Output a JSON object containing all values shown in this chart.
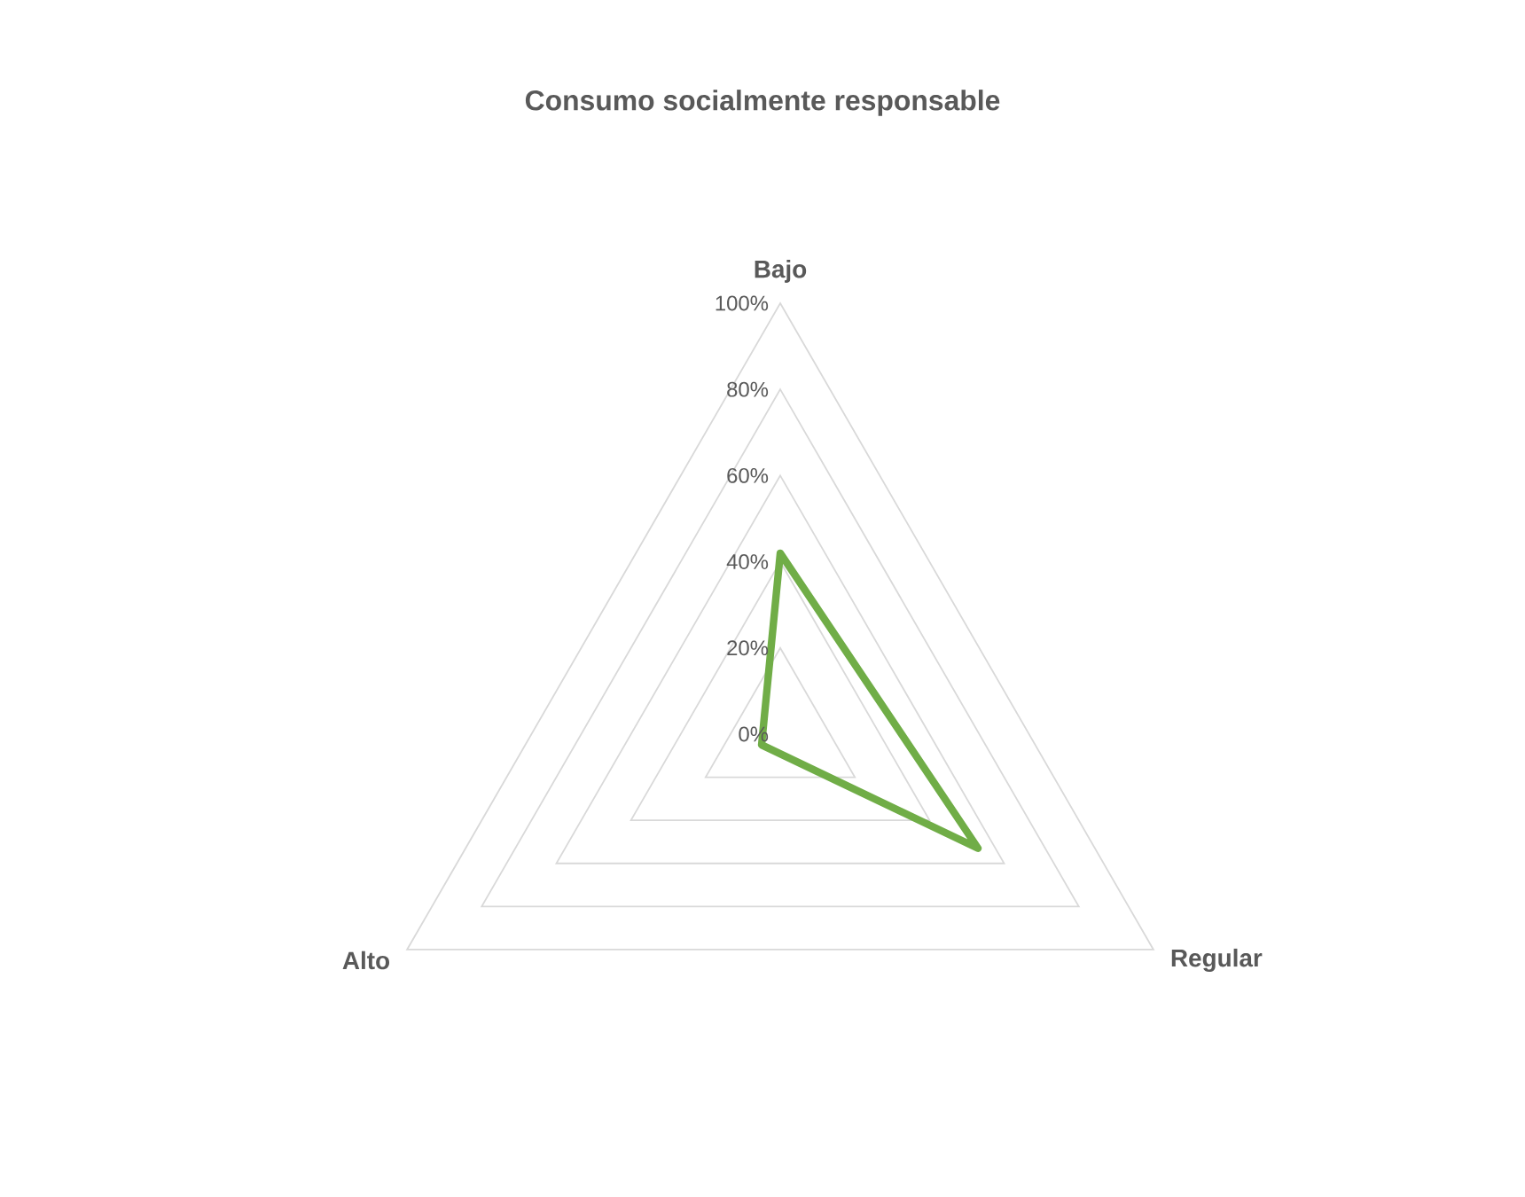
{
  "chart_data": {
    "type": "radar",
    "title": "Consumo socialmente responsable",
    "categories": [
      "Bajo",
      "Regular",
      "Alto"
    ],
    "series": [
      {
        "color": "#70ad47",
        "values": [
          42,
          53,
          5
        ]
      }
    ],
    "ylim": [
      0,
      100
    ],
    "yticks": [
      {
        "value": 0,
        "label": "0%"
      },
      {
        "value": 20,
        "label": "20%"
      },
      {
        "value": 40,
        "label": "40%"
      },
      {
        "value": 60,
        "label": "60%"
      },
      {
        "value": 80,
        "label": "80%"
      },
      {
        "value": 100,
        "label": "100%"
      }
    ],
    "grid": true
  }
}
